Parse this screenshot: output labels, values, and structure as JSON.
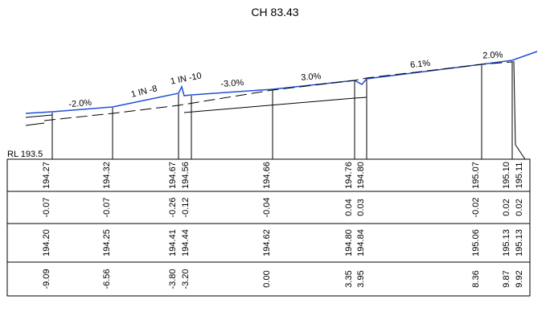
{
  "title": "CH 83.43",
  "datum": "RL 193.5",
  "colors": {
    "finished_line": "#1f4fd8",
    "lines": "#000000",
    "background": "#ffffff"
  },
  "grades": [
    "-2.0%",
    "1 IN -8",
    "1 IN -10",
    "-3.0%",
    "3.0%",
    "6.1%",
    "2.0%"
  ],
  "table": {
    "rows": [
      [
        "194.27",
        "194.32",
        "194.67",
        "194.56",
        "194.66",
        "194.76",
        "194.80",
        "195.07",
        "195.10",
        "195.11"
      ],
      [
        "-0.07",
        "-0.07",
        "-0.26",
        "-0.12",
        "-0.04",
        "0.04",
        "0.03",
        "-0.02",
        "0.02",
        "0.02"
      ],
      [
        "194.20",
        "194.25",
        "194.41",
        "194.44",
        "194.62",
        "194.80",
        "194.84",
        "195.06",
        "195.13",
        "195.13"
      ],
      [
        "-9.09",
        "-6.56",
        "-3.80",
        "-3.20",
        "0.00",
        "3.35",
        "3.95",
        "8.36",
        "9.87",
        "9.92"
      ]
    ]
  }
}
